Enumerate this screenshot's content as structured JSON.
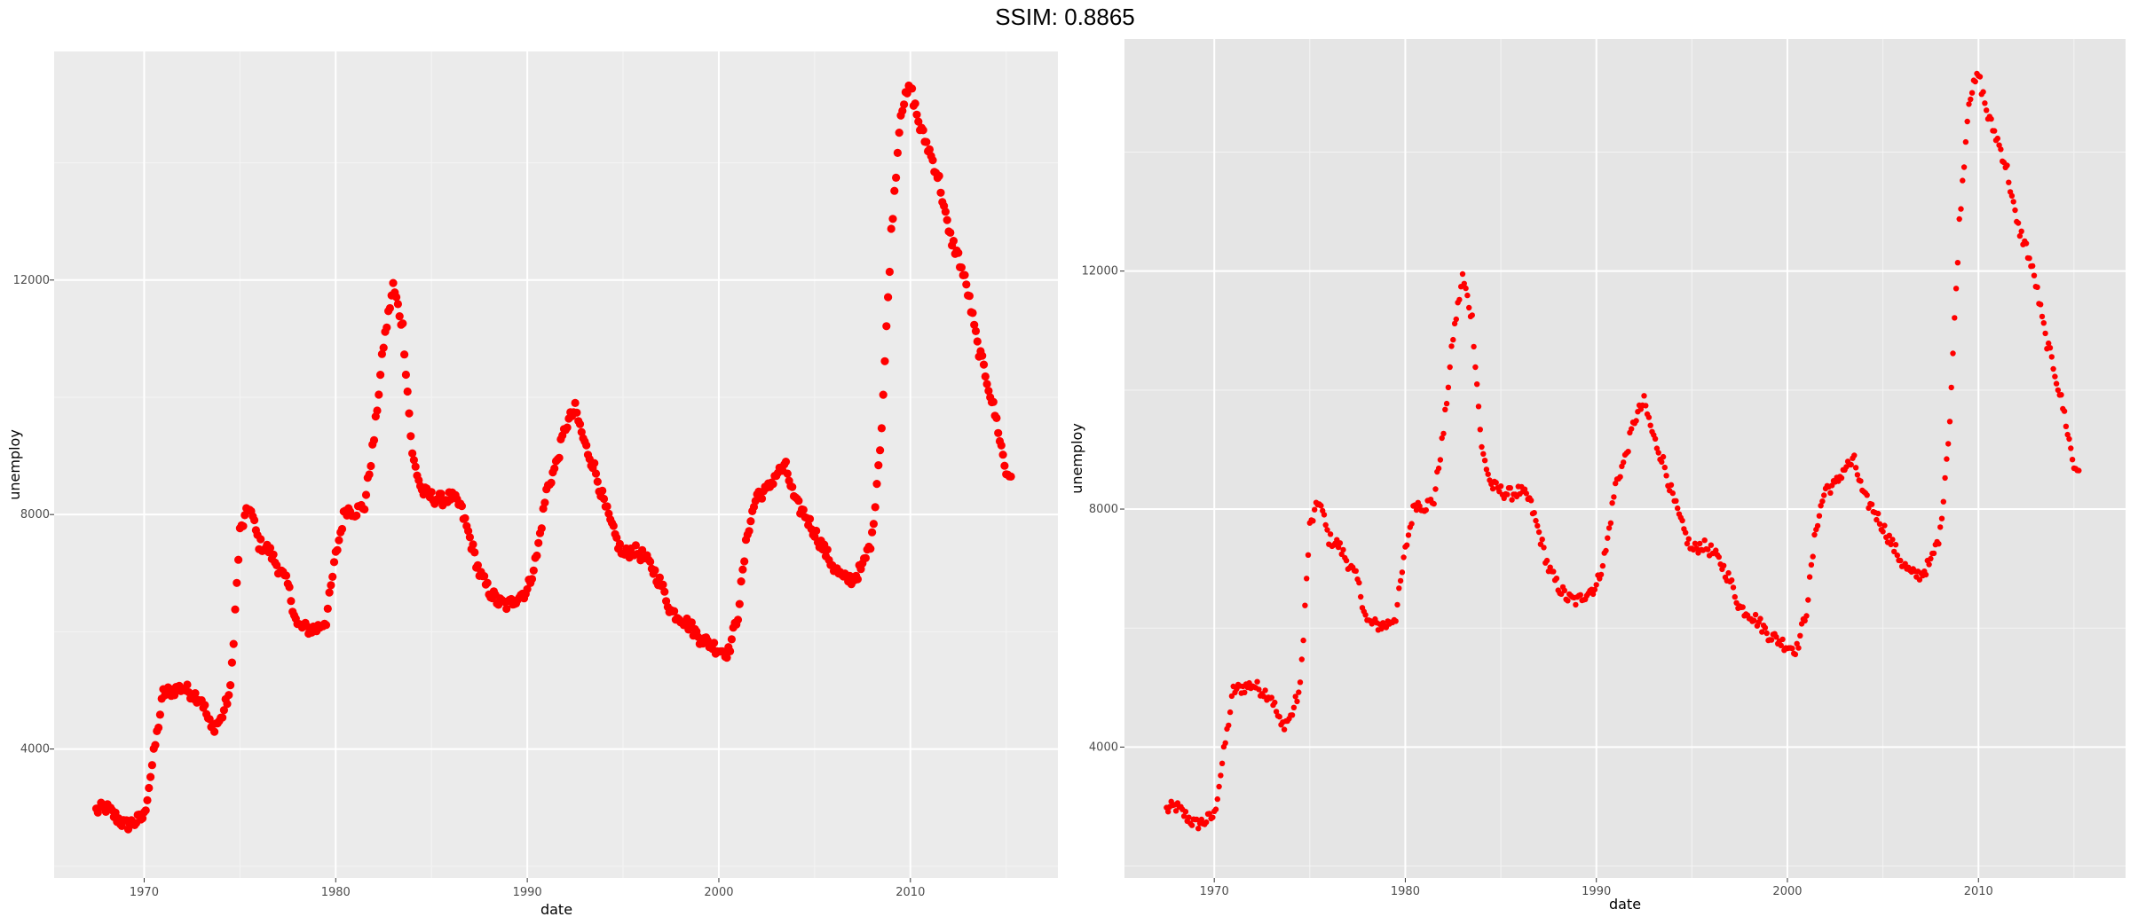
{
  "figure_title": "SSIM: 0.8865",
  "chart_data": [
    {
      "type": "scatter",
      "panel": "left",
      "xlabel": "date",
      "ylabel": "unemploy",
      "xlim": [
        1965.3,
        2017.7
      ],
      "ylim": [
        1800,
        15900
      ],
      "xticks": [
        1970,
        1980,
        1990,
        2000,
        2010
      ],
      "yticks": [
        4000,
        8000,
        12000
      ],
      "xtick_labels": [
        "1970",
        "1980",
        "1990",
        "2000",
        "2010"
      ],
      "ytick_labels": [
        "4000",
        "8000",
        "12000"
      ],
      "grid": true,
      "point_color": "#ff0000",
      "panel_background": "#ebebeb",
      "point_size": "large"
    },
    {
      "type": "scatter",
      "panel": "right",
      "xlabel": "date",
      "ylabel": "unemploy",
      "xlim": [
        1965.3,
        2017.7
      ],
      "ylim": [
        1800,
        15900
      ],
      "xticks": [
        1970,
        1980,
        1990,
        2000,
        2010
      ],
      "yticks": [
        4000,
        8000,
        12000
      ],
      "xtick_labels": [
        "1970",
        "1980",
        "1990",
        "2000",
        "2010"
      ],
      "ytick_labels": [
        "4000",
        "8000",
        "12000"
      ],
      "grid": true,
      "point_color": "#ff0000",
      "panel_background": "#e5e5e5",
      "point_size": "small"
    }
  ],
  "series_anchors": {
    "x": [
      1967.5,
      1968.0,
      1968.5,
      1969.0,
      1969.5,
      1970.0,
      1970.5,
      1971.0,
      1971.5,
      1972.0,
      1972.5,
      1973.0,
      1973.5,
      1974.0,
      1974.5,
      1975.0,
      1975.5,
      1976.0,
      1976.5,
      1977.0,
      1977.5,
      1978.0,
      1978.5,
      1979.0,
      1979.5,
      1980.0,
      1980.5,
      1981.0,
      1981.5,
      1982.0,
      1982.5,
      1983.0,
      1983.5,
      1984.0,
      1984.5,
      1985.0,
      1985.5,
      1986.0,
      1986.5,
      1987.0,
      1987.5,
      1988.0,
      1988.5,
      1989.0,
      1989.5,
      1990.0,
      1990.5,
      1991.0,
      1991.5,
      1992.0,
      1992.5,
      1993.0,
      1993.5,
      1994.0,
      1994.5,
      1995.0,
      1995.5,
      1996.0,
      1996.5,
      1997.0,
      1997.5,
      1998.0,
      1998.5,
      1999.0,
      1999.5,
      2000.0,
      2000.5,
      2001.0,
      2001.5,
      2002.0,
      2002.5,
      2003.0,
      2003.5,
      2004.0,
      2004.5,
      2005.0,
      2005.5,
      2006.0,
      2006.5,
      2007.0,
      2007.5,
      2008.0,
      2008.5,
      2009.0,
      2009.5,
      2010.0,
      2010.5,
      2011.0,
      2011.5,
      2012.0,
      2012.5,
      2013.0,
      2013.5,
      2014.0,
      2014.5,
      2015.0
    ],
    "y": [
      2950,
      3000,
      2850,
      2700,
      2750,
      2850,
      3900,
      4950,
      5000,
      5050,
      4950,
      4850,
      4350,
      4500,
      5000,
      7700,
      8150,
      7500,
      7400,
      7100,
      6800,
      6100,
      6050,
      6050,
      6200,
      7300,
      8100,
      8050,
      8150,
      9300,
      10900,
      11900,
      11200,
      9000,
      8400,
      8300,
      8250,
      8300,
      8150,
      7600,
      7000,
      6700,
      6500,
      6450,
      6600,
      6700,
      7300,
      8400,
      8850,
      9500,
      9800,
      9200,
      8800,
      8200,
      7700,
      7300,
      7400,
      7300,
      7100,
      6800,
      6350,
      6250,
      6100,
      5900,
      5800,
      5700,
      5650,
      6300,
      7700,
      8350,
      8400,
      8700,
      8800,
      8200,
      8000,
      7700,
      7400,
      7100,
      6900,
      6900,
      7100,
      7600,
      9500,
      12800,
      14900,
      15300,
      14600,
      14200,
      13700,
      12800,
      12400,
      11800,
      10900,
      10300,
      9600,
      8700
    ]
  }
}
